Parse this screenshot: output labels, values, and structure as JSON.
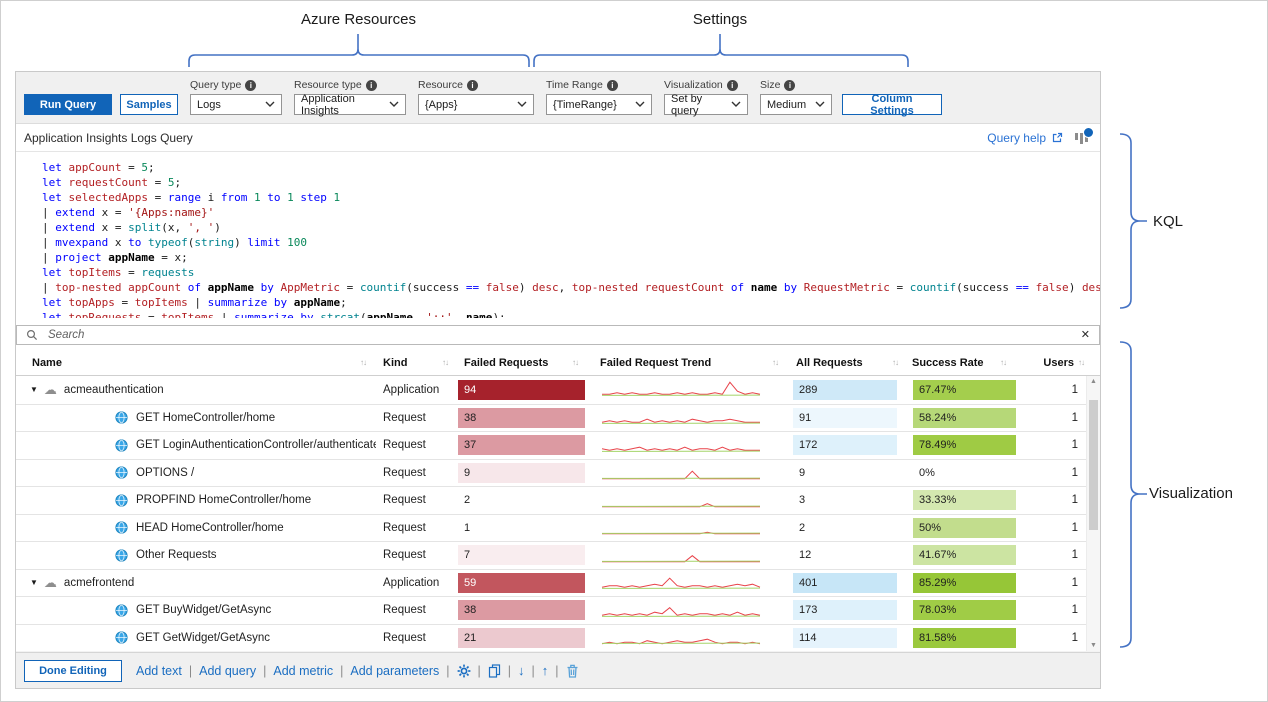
{
  "annotations": {
    "azure_resources": "Azure Resources",
    "settings": "Settings",
    "kql": "KQL",
    "visualization": "Visualization"
  },
  "colors": {
    "accent_blue": "#1164b8",
    "link_blue": "#2a72d4",
    "brace_blue": "#4472c4",
    "sparkline_red": "#e8434a",
    "sparkline_green": "#a5d46a"
  },
  "icons": {
    "info": "i",
    "sort": "↑↓",
    "expand": "▼",
    "cloud": "☁",
    "scroll_up": "▲",
    "scroll_down": "▼",
    "move_down": "↓",
    "move_up": "↑"
  },
  "toolbar": {
    "run_query": "Run Query",
    "samples": "Samples",
    "column_settings": "Column Settings",
    "dropdowns": [
      {
        "label": "Query type",
        "value": "Logs"
      },
      {
        "label": "Resource type",
        "value": "Application Insights"
      },
      {
        "label": "Resource",
        "value": "{Apps}"
      },
      {
        "label": "Time Range",
        "value": "{TimeRange}"
      },
      {
        "label": "Visualization",
        "value": "Set by query"
      },
      {
        "label": "Size",
        "value": "Medium"
      }
    ]
  },
  "query": {
    "title": "Application Insights Logs Query",
    "help_label": "Query help",
    "code_lines": [
      [
        [
          "k",
          "let "
        ],
        [
          "v",
          "appCount"
        ],
        [
          "p",
          " = "
        ],
        [
          "n",
          "5"
        ],
        [
          "p",
          ";"
        ]
      ],
      [
        [
          "k",
          "let "
        ],
        [
          "v",
          "requestCount"
        ],
        [
          "p",
          " = "
        ],
        [
          "n",
          "5"
        ],
        [
          "p",
          ";"
        ]
      ],
      [
        [
          "k",
          "let "
        ],
        [
          "v",
          "selectedApps"
        ],
        [
          "p",
          " = "
        ],
        [
          "k",
          "range"
        ],
        [
          "p",
          " i "
        ],
        [
          "k",
          "from"
        ],
        [
          "p",
          " "
        ],
        [
          "n",
          "1"
        ],
        [
          "p",
          " "
        ],
        [
          "k",
          "to"
        ],
        [
          "p",
          " "
        ],
        [
          "n",
          "1"
        ],
        [
          "p",
          " "
        ],
        [
          "k",
          "step"
        ],
        [
          "p",
          " "
        ],
        [
          "n",
          "1"
        ]
      ],
      [
        [
          "p",
          "| "
        ],
        [
          "k",
          "extend"
        ],
        [
          "p",
          " x = "
        ],
        [
          "s",
          "'{Apps:name}'"
        ]
      ],
      [
        [
          "p",
          "| "
        ],
        [
          "k",
          "extend"
        ],
        [
          "p",
          " x = "
        ],
        [
          "f",
          "split"
        ],
        [
          "p",
          "(x, "
        ],
        [
          "s",
          "', '"
        ],
        [
          "p",
          ")"
        ]
      ],
      [
        [
          "p",
          "| "
        ],
        [
          "k",
          "mvexpand"
        ],
        [
          "p",
          " x "
        ],
        [
          "k",
          "to"
        ],
        [
          "p",
          " "
        ],
        [
          "f",
          "typeof"
        ],
        [
          "p",
          "("
        ],
        [
          "f",
          "string"
        ],
        [
          "p",
          ") "
        ],
        [
          "k",
          "limit"
        ],
        [
          "p",
          " "
        ],
        [
          "n",
          "100"
        ]
      ],
      [
        [
          "p",
          "| "
        ],
        [
          "k",
          "project"
        ],
        [
          "p",
          " "
        ],
        [
          "b",
          "appName"
        ],
        [
          "p",
          " = x;"
        ]
      ],
      [
        [
          "k",
          "let "
        ],
        [
          "v",
          "topItems"
        ],
        [
          "p",
          " = "
        ],
        [
          "f",
          "requests"
        ]
      ],
      [
        [
          "p",
          "| "
        ],
        [
          "v",
          "top-nested"
        ],
        [
          "p",
          " "
        ],
        [
          "v",
          "appCount"
        ],
        [
          "p",
          " "
        ],
        [
          "k",
          "of"
        ],
        [
          "p",
          " "
        ],
        [
          "b",
          "appName"
        ],
        [
          "p",
          " "
        ],
        [
          "k",
          "by"
        ],
        [
          "p",
          " "
        ],
        [
          "v",
          "AppMetric"
        ],
        [
          "p",
          " = "
        ],
        [
          "f",
          "countif"
        ],
        [
          "p",
          "(success "
        ],
        [
          "k",
          "=="
        ],
        [
          "p",
          " "
        ],
        [
          "v",
          "false"
        ],
        [
          "p",
          ") "
        ],
        [
          "v",
          "desc"
        ],
        [
          "p",
          ", "
        ],
        [
          "v",
          "top-nested"
        ],
        [
          "p",
          " "
        ],
        [
          "v",
          "requestCount"
        ],
        [
          "p",
          " "
        ],
        [
          "k",
          "of"
        ],
        [
          "p",
          " "
        ],
        [
          "b",
          "name"
        ],
        [
          "p",
          " "
        ],
        [
          "k",
          "by"
        ],
        [
          "p",
          " "
        ],
        [
          "v",
          "RequestMetric"
        ],
        [
          "p",
          " = "
        ],
        [
          "f",
          "countif"
        ],
        [
          "p",
          "(success "
        ],
        [
          "k",
          "=="
        ],
        [
          "p",
          " "
        ],
        [
          "v",
          "false"
        ],
        [
          "p",
          ") "
        ],
        [
          "v",
          "desc"
        ],
        [
          "p",
          ";"
        ]
      ],
      [
        [
          "k",
          "let "
        ],
        [
          "v",
          "topApps"
        ],
        [
          "p",
          " = "
        ],
        [
          "v",
          "topItems"
        ],
        [
          "p",
          " | "
        ],
        [
          "k",
          "summarize"
        ],
        [
          "p",
          " "
        ],
        [
          "k",
          "by"
        ],
        [
          "p",
          " "
        ],
        [
          "b",
          "appName"
        ],
        [
          "p",
          ";"
        ]
      ],
      [
        [
          "k",
          "let "
        ],
        [
          "v",
          "topRequests"
        ],
        [
          "p",
          " = "
        ],
        [
          "v",
          "topItems"
        ],
        [
          "p",
          " | "
        ],
        [
          "k",
          "summarize"
        ],
        [
          "p",
          " "
        ],
        [
          "k",
          "by"
        ],
        [
          "p",
          " "
        ],
        [
          "f",
          "strcat"
        ],
        [
          "p",
          "("
        ],
        [
          "b",
          "appName"
        ],
        [
          "p",
          ", "
        ],
        [
          "s",
          "';;'"
        ],
        [
          "p",
          ", "
        ],
        [
          "b",
          "name"
        ],
        [
          "p",
          ");"
        ]
      ]
    ]
  },
  "search": {
    "placeholder": "Search",
    "clear_glyph": "✕"
  },
  "table": {
    "columns": [
      "Name",
      "Kind",
      "Failed Requests",
      "Failed Request Trend",
      "All Requests",
      "Success Rate",
      "Users"
    ],
    "rows": [
      {
        "name": "acmeauthentication",
        "kind": "Application",
        "level": 0,
        "expanded": true,
        "failed": {
          "value": "94",
          "bg": "#a6222c",
          "fg": "#ffffff"
        },
        "trend": [
          2,
          2,
          3,
          2,
          3,
          2,
          2,
          3,
          2,
          2,
          3,
          2,
          3,
          2,
          2,
          3,
          2,
          10,
          4,
          2,
          3,
          2
        ],
        "all": {
          "value": "289",
          "bg": "#cfe9f8"
        },
        "rate": {
          "value": "67.47%",
          "bg": "#a4ce4d"
        },
        "users": "1"
      },
      {
        "name": "GET HomeController/home",
        "kind": "Request",
        "level": 1,
        "failed": {
          "value": "38",
          "bg": "#dc9aa2"
        },
        "trend": [
          2,
          3,
          2,
          3,
          2,
          2,
          4,
          2,
          3,
          2,
          3,
          2,
          4,
          3,
          2,
          3,
          3,
          4,
          3,
          2,
          2,
          2
        ],
        "all": {
          "value": "91",
          "bg": "#edf7fd"
        },
        "rate": {
          "value": "58.24%",
          "bg": "#b6d878"
        },
        "users": "1"
      },
      {
        "name": "GET LoginAuthenticationController/authenticateUser",
        "kind": "Request",
        "level": 1,
        "failed": {
          "value": "37",
          "bg": "#dc9aa2"
        },
        "trend": [
          3,
          2,
          3,
          2,
          3,
          4,
          2,
          3,
          2,
          3,
          2,
          4,
          2,
          3,
          3,
          2,
          4,
          2,
          3,
          2,
          2,
          2
        ],
        "all": {
          "value": "172",
          "bg": "#def1fb"
        },
        "rate": {
          "value": "78.49%",
          "bg": "#9fcb44"
        },
        "users": "1"
      },
      {
        "name": "OPTIONS /",
        "kind": "Request",
        "level": 1,
        "failed": {
          "value": "9",
          "bg": "#f7e7ea"
        },
        "trend": [
          1,
          1,
          1,
          1,
          1,
          1,
          1,
          1,
          1,
          1,
          1,
          1,
          6,
          1,
          1,
          1,
          1,
          1,
          1,
          1,
          1,
          1
        ],
        "all": {
          "value": "9",
          "bg": ""
        },
        "rate": {
          "value": "0%",
          "bg": ""
        },
        "users": "1"
      },
      {
        "name": "PROPFIND HomeController/home",
        "kind": "Request",
        "level": 1,
        "failed": {
          "value": "2",
          "bg": ""
        },
        "trend": [
          1,
          1,
          1,
          1,
          1,
          1,
          1,
          1,
          1,
          1,
          1,
          1,
          1,
          1,
          3,
          1,
          1,
          1,
          1,
          1,
          1,
          1
        ],
        "all": {
          "value": "3",
          "bg": ""
        },
        "rate": {
          "value": "33.33%",
          "bg": "#d4e8b0"
        },
        "users": "1"
      },
      {
        "name": "HEAD HomeController/home",
        "kind": "Request",
        "level": 1,
        "failed": {
          "value": "1",
          "bg": ""
        },
        "trend": [
          1,
          1,
          1,
          1,
          1,
          1,
          1,
          1,
          1,
          1,
          1,
          1,
          1,
          1,
          2,
          1,
          1,
          1,
          1,
          1,
          1,
          1
        ],
        "all": {
          "value": "2",
          "bg": ""
        },
        "rate": {
          "value": "50%",
          "bg": "#c2dd8d"
        },
        "users": "1"
      },
      {
        "name": "Other Requests",
        "kind": "Request",
        "level": 1,
        "failed": {
          "value": "7",
          "bg": "#f9edef"
        },
        "trend": [
          1,
          1,
          1,
          1,
          1,
          1,
          1,
          1,
          1,
          1,
          1,
          1,
          5,
          1,
          1,
          1,
          1,
          1,
          1,
          1,
          1,
          1
        ],
        "all": {
          "value": "12",
          "bg": ""
        },
        "rate": {
          "value": "41.67%",
          "bg": "#cce4a2"
        },
        "users": "1"
      },
      {
        "name": "acmefrontend",
        "kind": "Application",
        "level": 0,
        "expanded": true,
        "failed": {
          "value": "59",
          "bg": "#c2565e",
          "fg": "#ffffff"
        },
        "trend": [
          2,
          3,
          3,
          2,
          3,
          2,
          3,
          4,
          3,
          8,
          3,
          2,
          3,
          3,
          2,
          3,
          2,
          3,
          4,
          3,
          4,
          2
        ],
        "all": {
          "value": "401",
          "bg": "#c7e6f7"
        },
        "rate": {
          "value": "85.29%",
          "bg": "#96c637"
        },
        "users": "1"
      },
      {
        "name": "GET BuyWidget/GetAsync",
        "kind": "Request",
        "level": 1,
        "failed": {
          "value": "38",
          "bg": "#dc9aa2"
        },
        "trend": [
          2,
          3,
          2,
          3,
          2,
          3,
          2,
          4,
          3,
          7,
          2,
          3,
          2,
          3,
          3,
          2,
          3,
          2,
          4,
          2,
          3,
          2
        ],
        "all": {
          "value": "173",
          "bg": "#def1fb"
        },
        "rate": {
          "value": "78.03%",
          "bg": "#a0cc46"
        },
        "users": "1"
      },
      {
        "name": "GET GetWidget/GetAsync",
        "kind": "Request",
        "level": 1,
        "failed": {
          "value": "21",
          "bg": "#ecc9cf"
        },
        "trend": [
          1,
          2,
          1,
          2,
          2,
          1,
          3,
          2,
          1,
          2,
          3,
          2,
          2,
          3,
          4,
          2,
          1,
          2,
          2,
          1,
          2,
          1
        ],
        "all": {
          "value": "114",
          "bg": "#e5f3fc"
        },
        "rate": {
          "value": "81.58%",
          "bg": "#9bc93e"
        },
        "users": "1"
      }
    ]
  },
  "footer": {
    "done_editing": "Done Editing",
    "links": [
      "Add text",
      "Add query",
      "Add metric",
      "Add parameters"
    ],
    "separator": "|"
  }
}
